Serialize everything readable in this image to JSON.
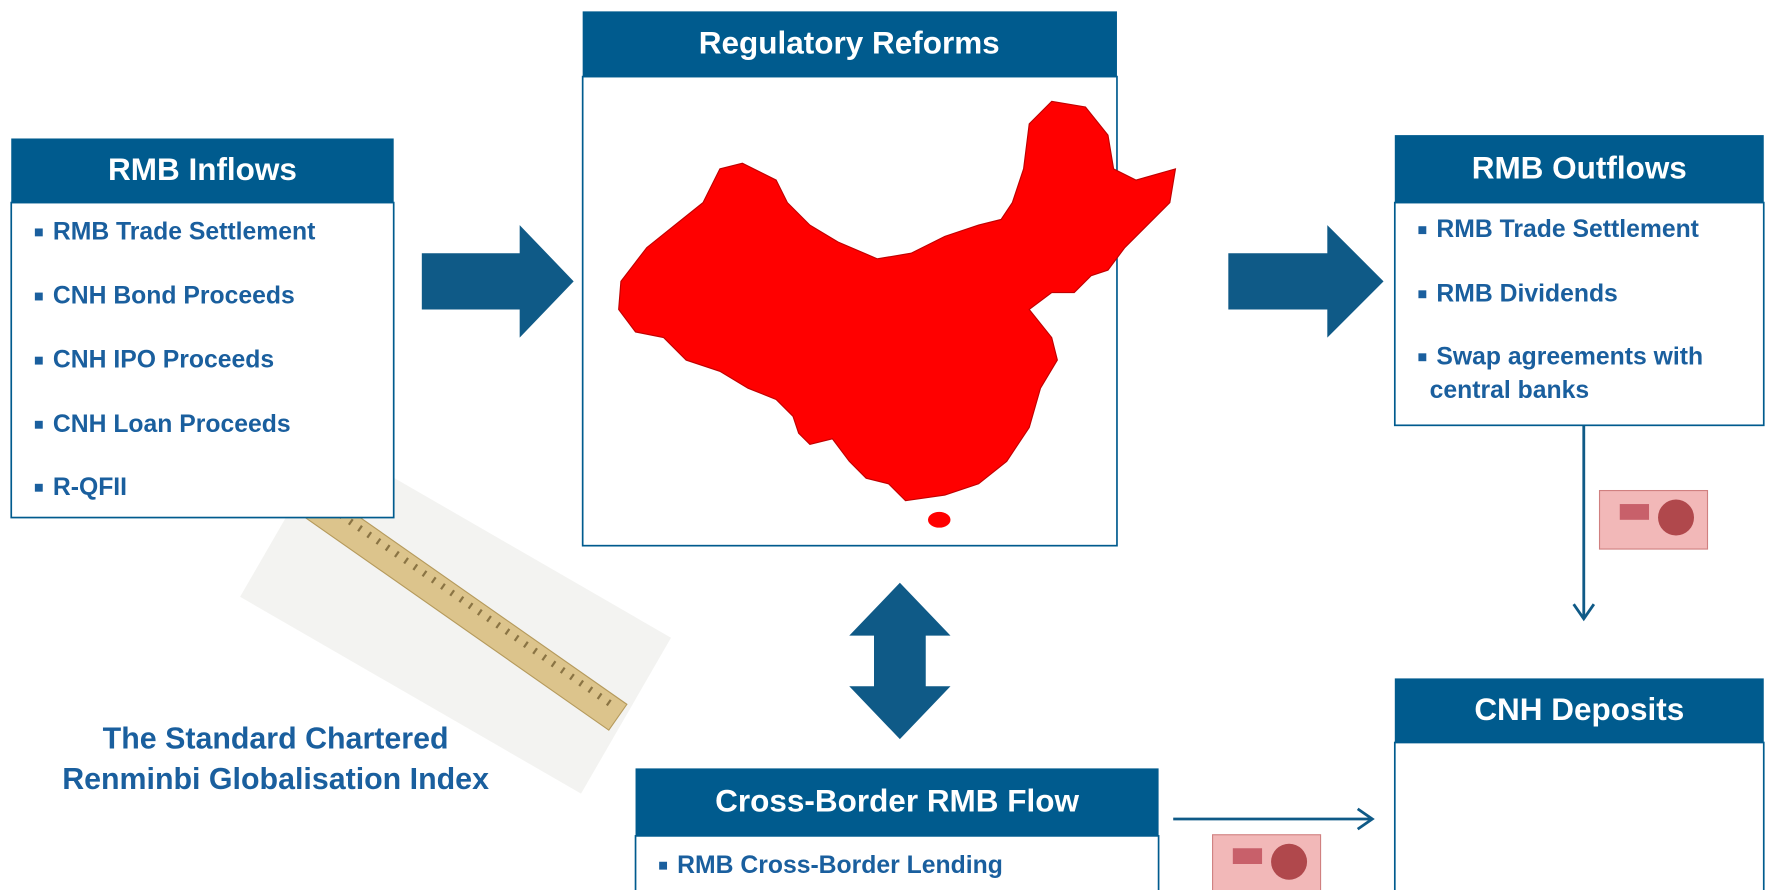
{
  "inflows": {
    "title": "RMB Inflows",
    "items": [
      "RMB Trade Settlement",
      "CNH Bond Proceeds",
      "CNH IPO Proceeds",
      "CNH Loan Proceeds",
      "R-QFII"
    ]
  },
  "reforms": {
    "title": "Regulatory Reforms"
  },
  "outflows": {
    "title": "RMB Outflows",
    "items": [
      "RMB Trade Settlement",
      "RMB Dividends",
      [
        "Swap agreements with",
        "central banks"
      ]
    ]
  },
  "deposits": {
    "title": "CNH Deposits"
  },
  "cross_border": {
    "title": "Cross-Border RMB Flow",
    "items": [
      "RMB Cross-Border Lending"
    ]
  },
  "index_label": [
    "The Standard Chartered",
    "Renminbi Globalisation Index"
  ]
}
